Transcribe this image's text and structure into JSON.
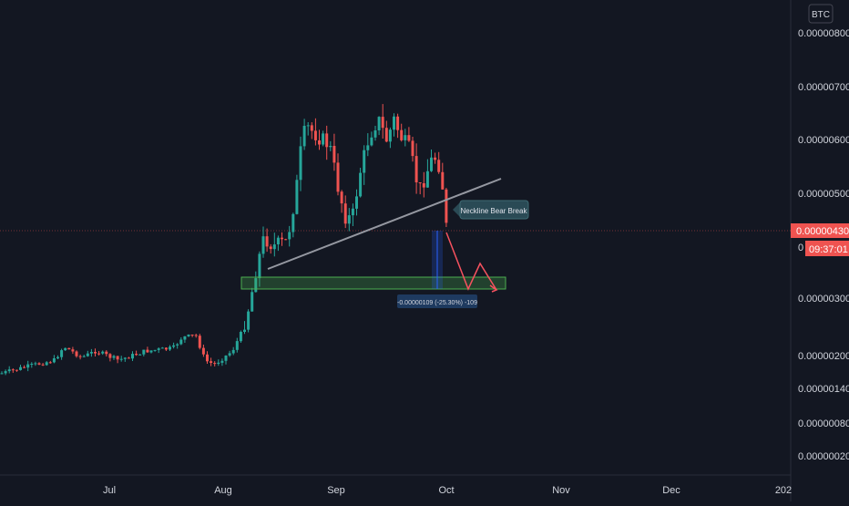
{
  "currency": "BTC",
  "price_axis": {
    "ticks": [
      "0.00000800",
      "0.00000700",
      "0.00000600",
      "0.00000500",
      "0.00000300",
      "0.00000200",
      "0.00000140",
      "0.00000080",
      "0.00000020"
    ],
    "current_price": "0.00000430",
    "countdown": "09:37:01",
    "partial_label": "0"
  },
  "time_axis": {
    "ticks": [
      "Jul",
      "Aug",
      "Sep",
      "Oct",
      "Nov",
      "Dec",
      "202"
    ]
  },
  "annotations": {
    "callout": "Neckline Bear Break",
    "measure": "-0.00000109 (-25.30%) -109"
  },
  "colors": {
    "background": "#131722",
    "up": "#26a69a",
    "down": "#ef5350",
    "neckline": "#9598a1",
    "support_zone": "#4caf50",
    "projection": "#f7525f",
    "axis_text": "#d1d4dc"
  }
}
